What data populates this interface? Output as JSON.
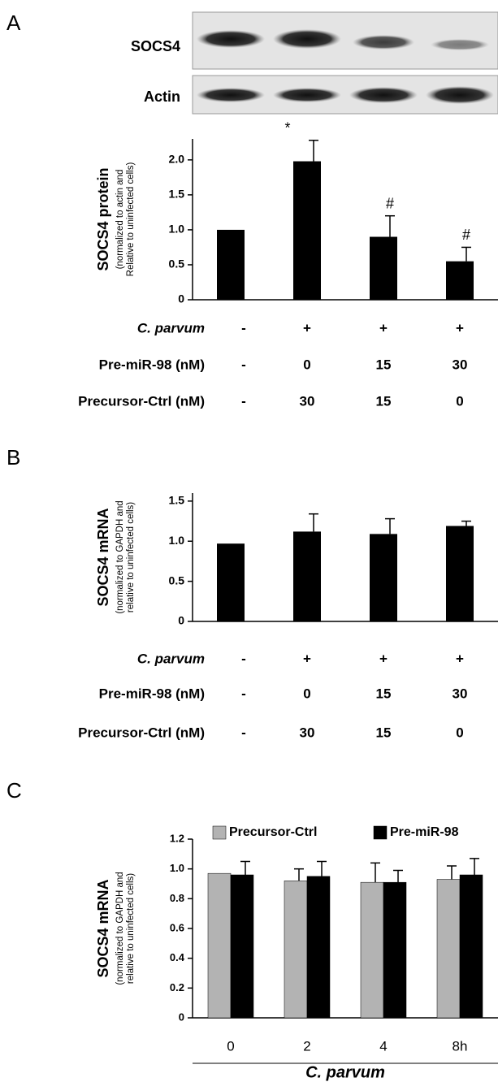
{
  "chart_data": [
    {
      "type": "bar",
      "panel": "A",
      "blot_labels": [
        "SOCS4",
        "Actin"
      ],
      "ylabel": "SOCS4 protein",
      "ylabel_note": [
        "(normalized to actin and",
        "Relative to uninfected cells)"
      ],
      "values": [
        1.0,
        1.98,
        0.9,
        0.55
      ],
      "errors": [
        0,
        0.3,
        0.3,
        0.2
      ],
      "annotations": [
        null,
        "*",
        "#",
        "#"
      ],
      "color": "#000000",
      "ylim": [
        0,
        2.3
      ],
      "yticks": [
        0,
        0.5,
        {
          "value": 1,
          "label": "1.0"
        },
        1.5,
        {
          "value": 2,
          "label": "2.0"
        }
      ],
      "conditions": [
        {
          "label": "C. parvum",
          "values": [
            "-",
            "+",
            "+",
            "+"
          ]
        },
        {
          "label": "Pre-miR-98 (nM)",
          "values": [
            "-",
            "0",
            "15",
            "30"
          ]
        },
        {
          "label": "Precursor-Ctrl (nM)",
          "values": [
            "-",
            "30",
            "15",
            "0"
          ]
        }
      ]
    },
    {
      "type": "bar",
      "panel": "B",
      "ylabel": "SOCS4 mRNA",
      "ylabel_note": [
        "(normalized to GAPDH and",
        "relative to uninfected cells)"
      ],
      "values": [
        0.97,
        1.12,
        1.09,
        1.19
      ],
      "errors": [
        0,
        0.22,
        0.19,
        0.06
      ],
      "color": "#000000",
      "ylim": [
        0,
        1.6
      ],
      "yticks": [
        0,
        0.5,
        {
          "value": 1,
          "label": "1.0"
        },
        1.5
      ],
      "conditions": [
        {
          "label": "C. parvum",
          "values": [
            "-",
            "+",
            "+",
            "+"
          ]
        },
        {
          "label": "Pre-miR-98 (nM)",
          "values": [
            "-",
            "0",
            "15",
            "30"
          ]
        },
        {
          "label": "Precursor-Ctrl (nM)",
          "values": [
            "-",
            "30",
            "15",
            "0"
          ]
        }
      ]
    },
    {
      "type": "bar",
      "panel": "C",
      "ylabel": "SOCS4 mRNA",
      "ylabel_note": [
        "(normalized to GAPDH and",
        "relative to uninfected cells)"
      ],
      "categories": [
        "0",
        "2",
        "4",
        "8h"
      ],
      "xlabel": "C. parvum",
      "series": [
        {
          "name": "Precursor-Ctrl",
          "color": "#b3b3b3",
          "values": [
            0.97,
            0.92,
            0.91,
            0.93
          ],
          "errors": [
            0,
            0.08,
            0.13,
            0.09
          ]
        },
        {
          "name": "Pre-miR-98",
          "color": "#000000",
          "values": [
            0.96,
            0.95,
            0.91,
            0.96
          ],
          "errors": [
            0.09,
            0.1,
            0.08,
            0.11
          ]
        }
      ],
      "ylim": [
        0,
        1.2
      ],
      "yticks": [
        0,
        0.2,
        0.4,
        0.6,
        0.8,
        {
          "value": 1,
          "label": "1.0"
        },
        1.2
      ]
    }
  ]
}
